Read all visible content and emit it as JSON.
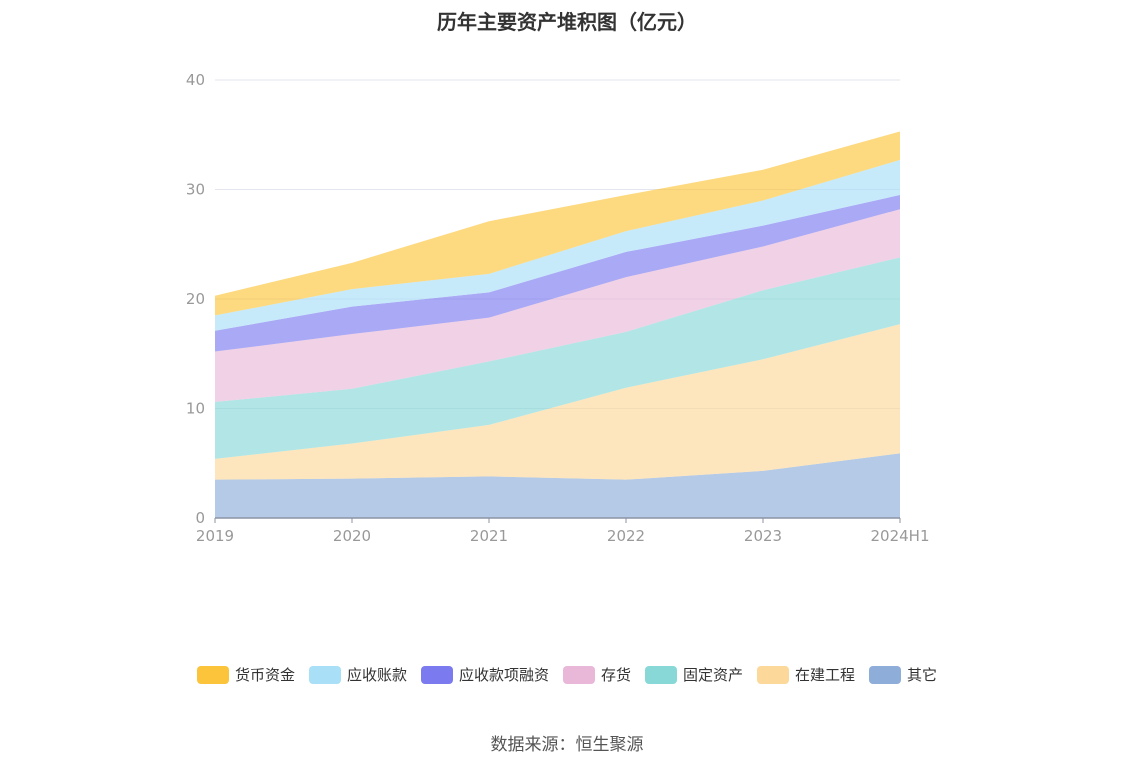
{
  "chart_data": {
    "type": "area",
    "stacked": true,
    "title": "历年主要资产堆积图（亿元）",
    "x": [
      "2019",
      "2020",
      "2021",
      "2022",
      "2023",
      "2024H1"
    ],
    "ylim": [
      0,
      40
    ],
    "yticks": [
      0,
      10,
      20,
      30,
      40
    ],
    "grid": true,
    "legend_position": "bottom",
    "series": [
      {
        "name": "其它",
        "color": "#8eadd9",
        "values": [
          3.5,
          3.6,
          3.8,
          3.5,
          4.3,
          5.9
        ]
      },
      {
        "name": "在建工程",
        "color": "#fcd99a",
        "values": [
          1.9,
          3.2,
          4.7,
          8.4,
          10.2,
          11.8
        ]
      },
      {
        "name": "固定资产",
        "color": "#88d8d8",
        "values": [
          5.2,
          5.0,
          5.8,
          5.1,
          6.3,
          6.1
        ]
      },
      {
        "name": "存货",
        "color": "#e9b8d8",
        "values": [
          4.6,
          5.0,
          4.0,
          5.0,
          4.0,
          4.4
        ]
      },
      {
        "name": "应收款项融资",
        "color": "#7b7bef",
        "values": [
          1.9,
          2.5,
          2.3,
          2.3,
          1.9,
          1.3
        ]
      },
      {
        "name": "应收账款",
        "color": "#a9dff7",
        "values": [
          1.4,
          1.6,
          1.7,
          1.9,
          2.3,
          3.2
        ]
      },
      {
        "name": "货币资金",
        "color": "#fcc43a",
        "values": [
          1.8,
          2.4,
          4.8,
          3.3,
          2.8,
          2.6
        ]
      }
    ]
  },
  "source_label": "数据来源：恒生聚源"
}
